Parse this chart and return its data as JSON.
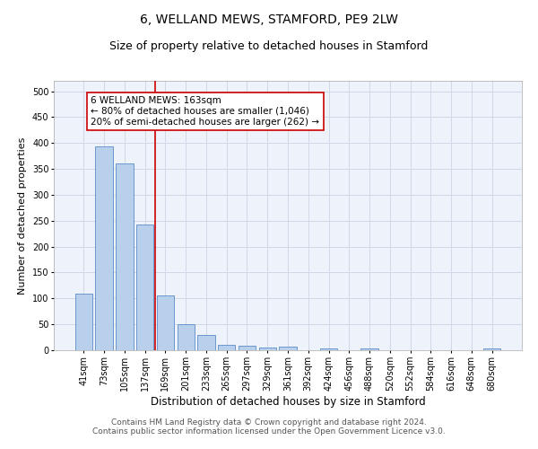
{
  "title": "6, WELLAND MEWS, STAMFORD, PE9 2LW",
  "subtitle": "Size of property relative to detached houses in Stamford",
  "xlabel": "Distribution of detached houses by size in Stamford",
  "ylabel": "Number of detached properties",
  "categories": [
    "41sqm",
    "73sqm",
    "105sqm",
    "137sqm",
    "169sqm",
    "201sqm",
    "233sqm",
    "265sqm",
    "297sqm",
    "329sqm",
    "361sqm",
    "392sqm",
    "424sqm",
    "456sqm",
    "488sqm",
    "520sqm",
    "552sqm",
    "584sqm",
    "616sqm",
    "648sqm",
    "680sqm"
  ],
  "values": [
    110,
    393,
    360,
    243,
    105,
    50,
    30,
    10,
    8,
    6,
    7,
    0,
    4,
    0,
    4,
    0,
    0,
    0,
    0,
    0,
    4
  ],
  "bar_color": "#b8d0eb",
  "bar_edge_color": "#5b8cc8",
  "vline_color": "#cc0000",
  "annotation_text": "6 WELLAND MEWS: 163sqm\n← 80% of detached houses are smaller (1,046)\n20% of semi-detached houses are larger (262) →",
  "annotation_box_color": "#ffffff",
  "annotation_box_edge": "#cc0000",
  "ylim": [
    0,
    520
  ],
  "yticks": [
    0,
    50,
    100,
    150,
    200,
    250,
    300,
    350,
    400,
    450,
    500
  ],
  "grid_color": "#d0d8e8",
  "background_color": "#eef2fb",
  "footer_line1": "Contains HM Land Registry data © Crown copyright and database right 2024.",
  "footer_line2": "Contains public sector information licensed under the Open Government Licence v3.0.",
  "title_fontsize": 10,
  "subtitle_fontsize": 9,
  "xlabel_fontsize": 8.5,
  "ylabel_fontsize": 8,
  "tick_fontsize": 7,
  "annotation_fontsize": 7.5,
  "footer_fontsize": 6.5
}
